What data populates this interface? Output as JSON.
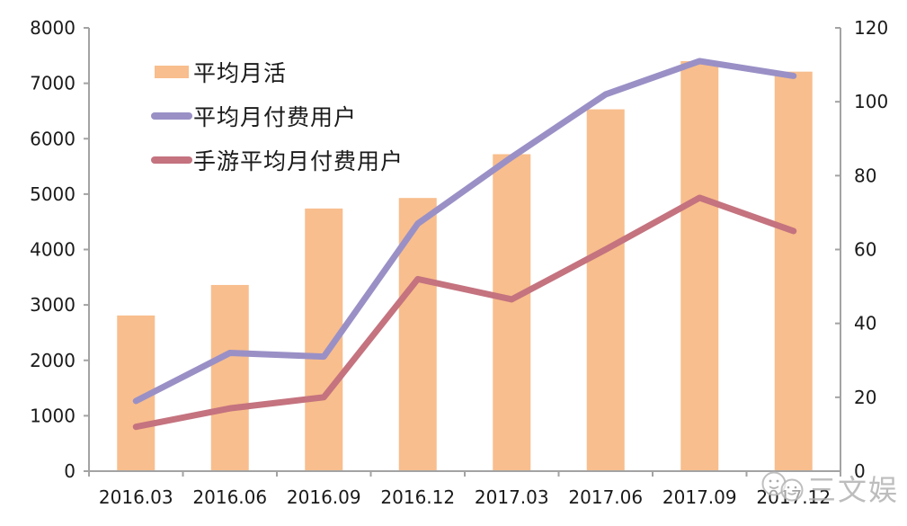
{
  "chart_data": {
    "type": "combo-bar-line",
    "title": "",
    "categories": [
      "2016.03",
      "2016.06",
      "2016.09",
      "2016.12",
      "2017.03",
      "2017.06",
      "2017.09",
      "2017.12"
    ],
    "series": [
      {
        "name": "平均月活",
        "chart_type": "bar",
        "axis": "left",
        "color": "#F8BE8D",
        "values": [
          2810,
          3360,
          4740,
          4930,
          5720,
          6530,
          7400,
          7210
        ]
      },
      {
        "name": "平均月付费用户",
        "chart_type": "line",
        "axis": "right",
        "color": "#9A90C6",
        "values": [
          19,
          32,
          31,
          67,
          85,
          102,
          111,
          107
        ]
      },
      {
        "name": "手游平均月付费用户",
        "chart_type": "line",
        "axis": "right",
        "color": "#C4737F",
        "values": [
          12,
          17,
          20,
          52,
          46.5,
          60,
          74,
          65
        ]
      }
    ],
    "left_axis": {
      "min": 0,
      "max": 8000,
      "step": 1000,
      "tick_labels": [
        "0",
        "1000",
        "2000",
        "3000",
        "4000",
        "5000",
        "6000",
        "7000",
        "8000"
      ]
    },
    "right_axis": {
      "min": 0,
      "max": 120,
      "step": 20,
      "tick_labels": [
        "0",
        "20",
        "40",
        "60",
        "80",
        "100",
        "120"
      ]
    },
    "grid": false,
    "legend_position": "top-left-inside"
  },
  "legend": {
    "items": [
      {
        "label": "平均月活",
        "swatch": "bar",
        "color": "#F8BE8D"
      },
      {
        "label": "平均月付费用户",
        "swatch": "line",
        "color": "#9A90C6"
      },
      {
        "label": "手游平均月付费用户",
        "swatch": "line",
        "color": "#C4737F"
      }
    ]
  },
  "watermark": {
    "text": "三文娱",
    "logo": "overlapping-smiley-circles-icon"
  },
  "colors": {
    "axis": "#A3A3A3",
    "text": "#1A1A1A",
    "background": "#FFFFFF",
    "watermark": "#ACACAC"
  }
}
